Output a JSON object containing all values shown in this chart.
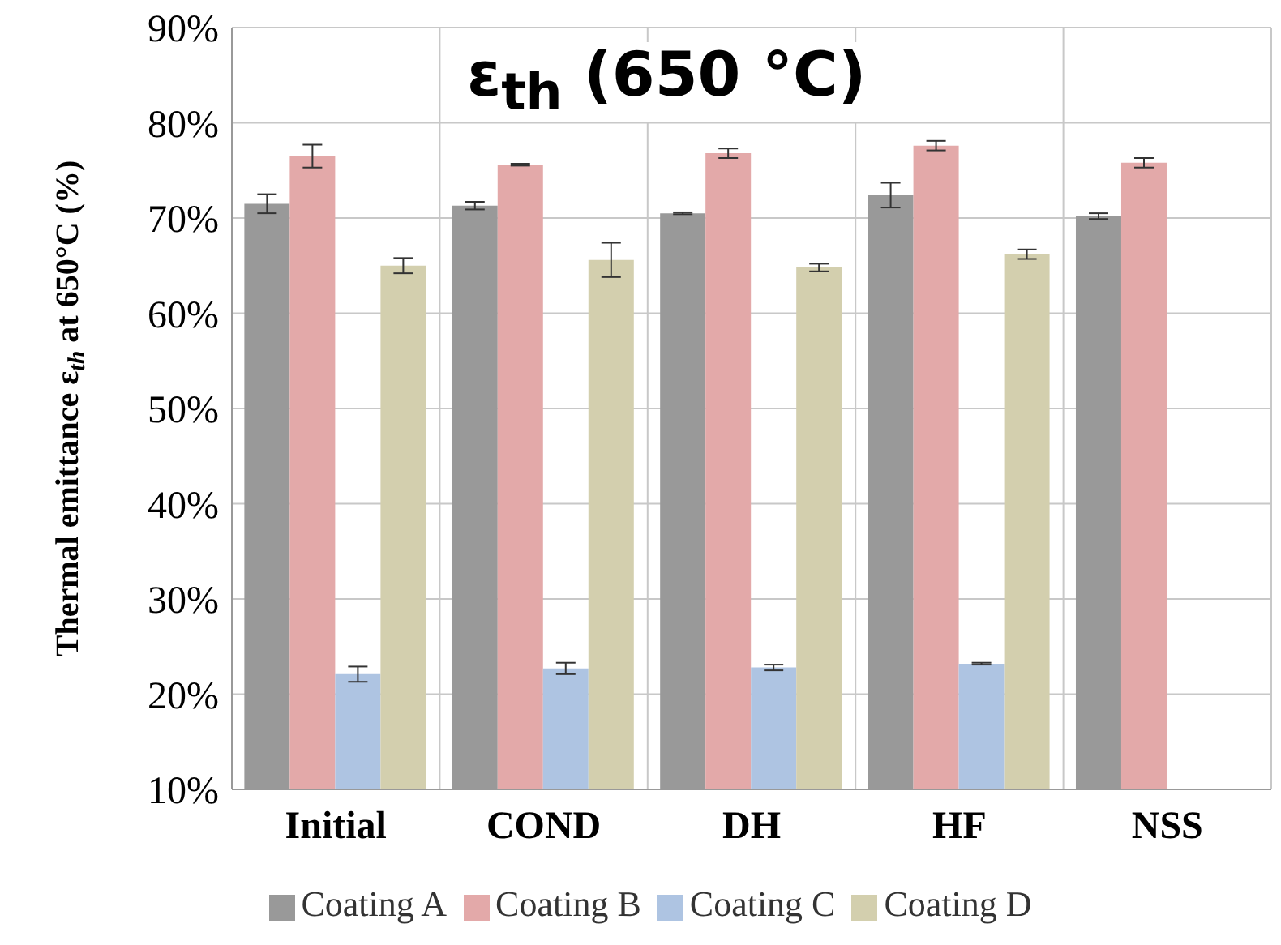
{
  "chart_data": {
    "type": "bar",
    "title": "ε$_{th}$ (650 °C)",
    "ylabel": "Thermal emittance ε$_{th}$ at 650°C (%)",
    "categories": [
      "Initial",
      "COND",
      "DH",
      "HF",
      "NSS"
    ],
    "series": [
      {
        "name": "Coating A",
        "color": "#999999",
        "values": [
          71.5,
          71.3,
          70.5,
          72.4,
          70.2
        ],
        "errors": [
          1.0,
          0.4,
          0.1,
          1.3,
          0.3
        ]
      },
      {
        "name": "Coating B",
        "color": "#e3a9a9",
        "values": [
          76.5,
          75.6,
          76.8,
          77.6,
          75.8
        ],
        "errors": [
          1.2,
          0.1,
          0.5,
          0.5,
          0.5
        ]
      },
      {
        "name": "Coating C",
        "color": "#aec4e2",
        "values": [
          22.1,
          22.7,
          22.8,
          23.2,
          null
        ],
        "errors": [
          0.8,
          0.6,
          0.3,
          0.1,
          null
        ]
      },
      {
        "name": "Coating D",
        "color": "#d3cfae",
        "values": [
          65.0,
          65.6,
          64.8,
          66.2,
          null
        ],
        "errors": [
          0.8,
          1.8,
          0.4,
          0.5,
          null
        ]
      }
    ],
    "ylim": [
      10,
      90
    ],
    "yticks": [
      {
        "value": 10,
        "label": "10%"
      },
      {
        "value": 20,
        "label": "20%"
      },
      {
        "value": 30,
        "label": "30%"
      },
      {
        "value": 40,
        "label": "40%"
      },
      {
        "value": 50,
        "label": "50%"
      },
      {
        "value": 60,
        "label": "60%"
      },
      {
        "value": 70,
        "label": "70%"
      },
      {
        "value": 80,
        "label": "80%"
      },
      {
        "value": 90,
        "label": "90%"
      }
    ],
    "grid": true,
    "legend": "bottom"
  }
}
